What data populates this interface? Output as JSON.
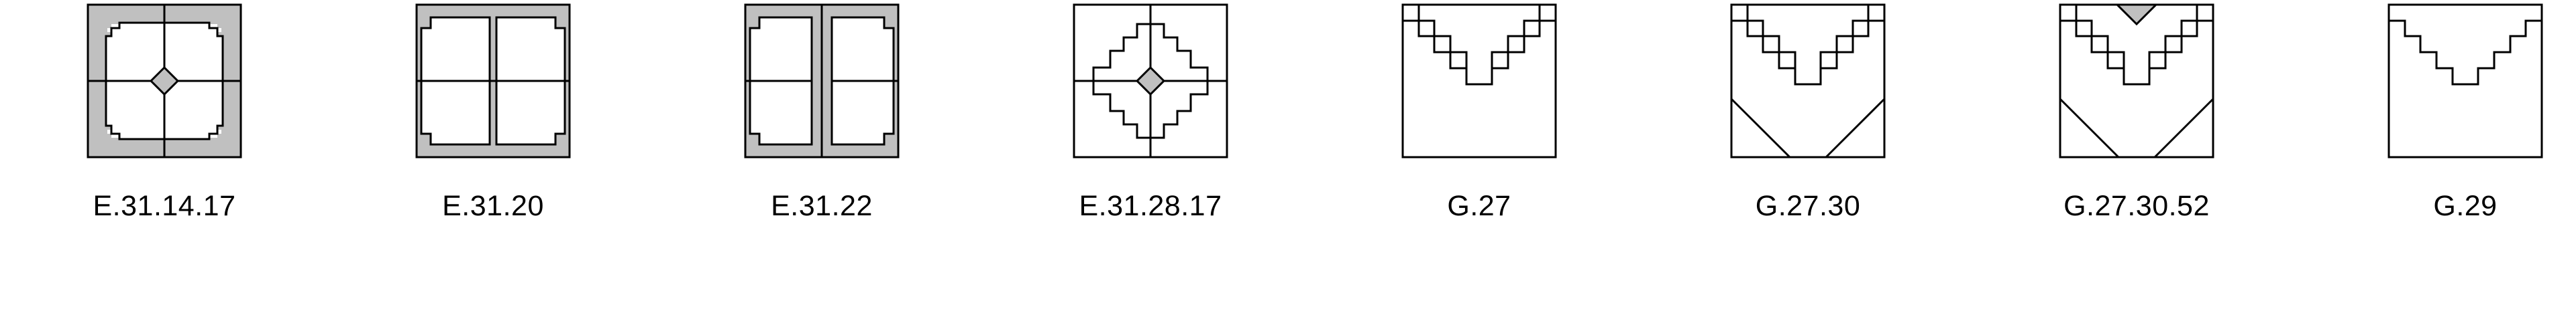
{
  "tiles": [
    {
      "code": "E.31.14.17",
      "pattern": "double-corner-notch-quadrants-diamond"
    },
    {
      "code": "E.31.20",
      "pattern": "corner-notch-quadrants"
    },
    {
      "code": "E.31.22",
      "pattern": "corner-notch-split-columns"
    },
    {
      "code": "E.31.28.17",
      "pattern": "stepped-diamond-cross"
    },
    {
      "code": "G.27",
      "pattern": "stepped-v-corner-boxes"
    },
    {
      "code": "G.27.30",
      "pattern": "stepped-v-corner-boxes-diagonals"
    },
    {
      "code": "G.27.30.52",
      "pattern": "stepped-v-corner-boxes-diagonals-top-triangle"
    },
    {
      "code": "G.29",
      "pattern": "stepped-v-open"
    }
  ],
  "colors": {
    "fill": "#c0c0c0",
    "stroke": "#000000",
    "background": "#ffffff"
  }
}
